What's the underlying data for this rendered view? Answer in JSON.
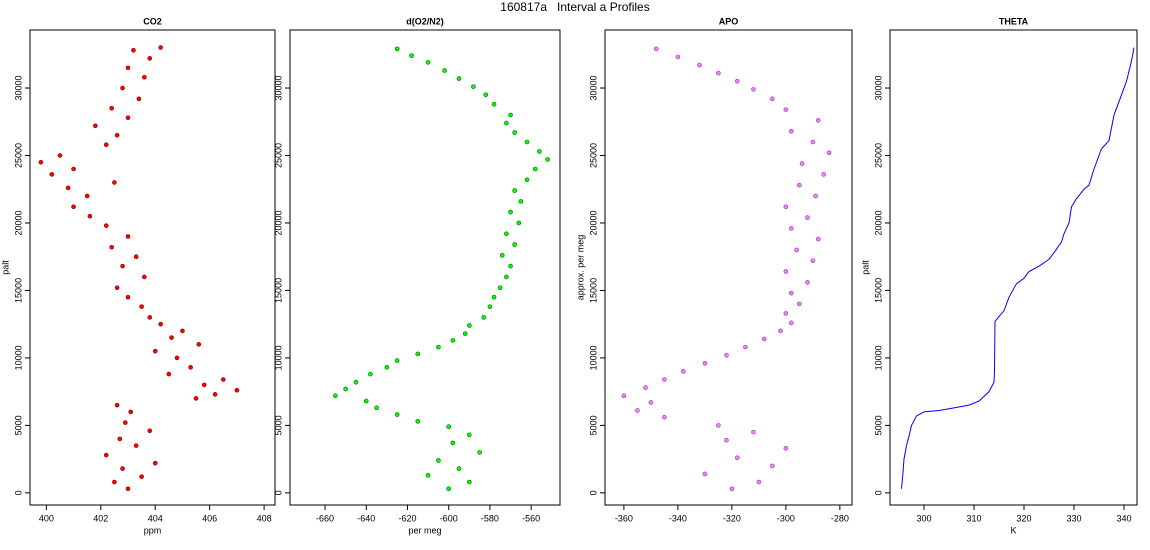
{
  "title": "160817a   Interval a Profiles",
  "chart_data": [
    {
      "type": "scatter",
      "title": "CO2",
      "x_label": "ppm",
      "y_label": "palt",
      "color": "#ff0000",
      "edge_color": "#8b0000",
      "xlim": [
        399.4,
        408.4
      ],
      "xticks": [
        400,
        402,
        404,
        406,
        408
      ],
      "ylim": [
        -900,
        34300
      ],
      "yticks": [
        0,
        5000,
        10000,
        15000,
        20000,
        25000,
        30000
      ],
      "x": [
        403.0,
        402.5,
        403.5,
        402.8,
        404.0,
        402.2,
        403.3,
        402.7,
        403.8,
        402.9,
        403.1,
        402.6,
        405.5,
        406.2,
        407.0,
        405.8,
        406.5,
        404.5,
        405.3,
        404.8,
        404.0,
        405.6,
        404.6,
        405.0,
        404.2,
        403.8,
        403.5,
        403.0,
        402.6,
        403.6,
        402.8,
        403.3,
        402.4,
        403.0,
        402.2,
        401.6,
        401.0,
        401.5,
        400.8,
        402.5,
        400.2,
        401.0,
        399.8,
        400.5,
        402.2,
        402.6,
        401.8,
        403.0,
        402.4,
        403.4,
        402.8,
        403.6,
        403.0,
        403.8,
        403.2,
        404.2
      ],
      "values": [
        300,
        800,
        1200,
        1800,
        2200,
        2800,
        3500,
        4000,
        4600,
        5200,
        6000,
        6500,
        7000,
        7300,
        7600,
        8000,
        8400,
        8800,
        9300,
        10000,
        10500,
        11000,
        11500,
        12000,
        12500,
        13000,
        13800,
        14500,
        15200,
        16000,
        16800,
        17500,
        18200,
        19000,
        19800,
        20500,
        21200,
        22000,
        22600,
        23000,
        23600,
        24000,
        24500,
        25000,
        25800,
        26500,
        27200,
        27800,
        28500,
        29200,
        30000,
        30800,
        31500,
        32200,
        32800,
        33000
      ]
    },
    {
      "type": "scatter",
      "title": "d(O2/N2)",
      "x_label": "per meg",
      "color": "#00ff00",
      "edge_color": "#006400",
      "xlim": [
        -677,
        -546
      ],
      "xticks": [
        -660,
        -640,
        -620,
        -600,
        -580,
        -560
      ],
      "ylim": [
        -900,
        34300
      ],
      "yticks": [
        0,
        5000,
        10000,
        15000,
        20000,
        25000,
        30000
      ],
      "x": [
        -600,
        -590,
        -610,
        -595,
        -605,
        -585,
        -598,
        -590,
        -600,
        -615,
        -625,
        -635,
        -640,
        -655,
        -650,
        -645,
        -638,
        -630,
        -625,
        -615,
        -605,
        -598,
        -592,
        -590,
        -583,
        -580,
        -578,
        -575,
        -572,
        -570,
        -574,
        -568,
        -572,
        -566,
        -570,
        -565,
        -568,
        -562,
        -558,
        -552,
        -556,
        -562,
        -568,
        -572,
        -570,
        -578,
        -582,
        -588,
        -595,
        -602,
        -610,
        -618,
        -625
      ],
      "values": [
        300,
        800,
        1300,
        1800,
        2400,
        3000,
        3700,
        4300,
        4900,
        5300,
        5800,
        6300,
        6800,
        7200,
        7700,
        8200,
        8800,
        9300,
        9800,
        10300,
        10800,
        11300,
        11800,
        12400,
        13000,
        13800,
        14500,
        15200,
        16000,
        16800,
        17600,
        18400,
        19200,
        20000,
        20800,
        21600,
        22400,
        23200,
        24000,
        24700,
        25300,
        26000,
        26700,
        27400,
        28000,
        28800,
        29500,
        30100,
        30700,
        31300,
        31900,
        32400,
        32900
      ]
    },
    {
      "type": "scatter",
      "title": "APO",
      "y_label": "approx. per meg",
      "color": "#ee82ee",
      "edge_color": "#9932cc",
      "xlim": [
        -367,
        -275.5
      ],
      "xticks": [
        -360,
        -340,
        -320,
        -300,
        -280
      ],
      "ylim": [
        -900,
        34300
      ],
      "yticks": [
        0,
        5000,
        10000,
        15000,
        20000,
        25000,
        30000
      ],
      "x": [
        -320,
        -310,
        -330,
        -305,
        -318,
        -300,
        -322,
        -312,
        -325,
        -345,
        -355,
        -350,
        -360,
        -352,
        -345,
        -338,
        -330,
        -322,
        -315,
        -308,
        -302,
        -298,
        -300,
        -295,
        -298,
        -292,
        -300,
        -290,
        -296,
        -288,
        -298,
        -292,
        -300,
        -289,
        -295,
        -286,
        -294,
        -284,
        -290,
        -298,
        -288,
        -300,
        -305,
        -312,
        -318,
        -325,
        -332,
        -340,
        -348
      ],
      "values": [
        300,
        800,
        1400,
        2000,
        2600,
        3300,
        3900,
        4500,
        5000,
        5600,
        6100,
        6700,
        7200,
        7800,
        8400,
        9000,
        9600,
        10200,
        10800,
        11400,
        12000,
        12600,
        13300,
        14000,
        14800,
        15600,
        16400,
        17200,
        18000,
        18800,
        19600,
        20400,
        21200,
        22000,
        22800,
        23600,
        24400,
        25200,
        26000,
        26800,
        27600,
        28400,
        29200,
        29900,
        30500,
        31100,
        31700,
        32300,
        32900
      ]
    },
    {
      "type": "line",
      "title": "THETA",
      "x_label": "K",
      "y_label": "palt",
      "color": "#0000ff",
      "xlim": [
        293.2,
        342.6
      ],
      "xticks": [
        300,
        310,
        320,
        330,
        340
      ],
      "ylim": [
        -900,
        34300
      ],
      "yticks": [
        0,
        5000,
        10000,
        15000,
        20000,
        25000,
        30000
      ],
      "x": [
        295.5,
        295.8,
        296,
        296.5,
        297,
        297.5,
        298.5,
        300,
        303,
        306,
        309,
        311,
        313,
        314,
        314.1,
        314.2,
        316,
        317,
        318.5,
        320,
        321,
        323,
        325,
        326,
        327.5,
        328,
        329,
        329.5,
        330.5,
        332,
        333,
        334,
        335.5,
        337,
        338,
        339.5,
        340.5,
        341.5,
        342
      ],
      "values": [
        300,
        1500,
        2500,
        3500,
        4200,
        5000,
        5700,
        6000,
        6100,
        6300,
        6500,
        6800,
        7500,
        8200,
        9000,
        12700,
        13500,
        14500,
        15500,
        15900,
        16400,
        16800,
        17300,
        17800,
        18600,
        19200,
        20000,
        21200,
        21800,
        22500,
        22800,
        24000,
        25500,
        26100,
        28000,
        29500,
        30500,
        32000,
        33000
      ]
    }
  ]
}
